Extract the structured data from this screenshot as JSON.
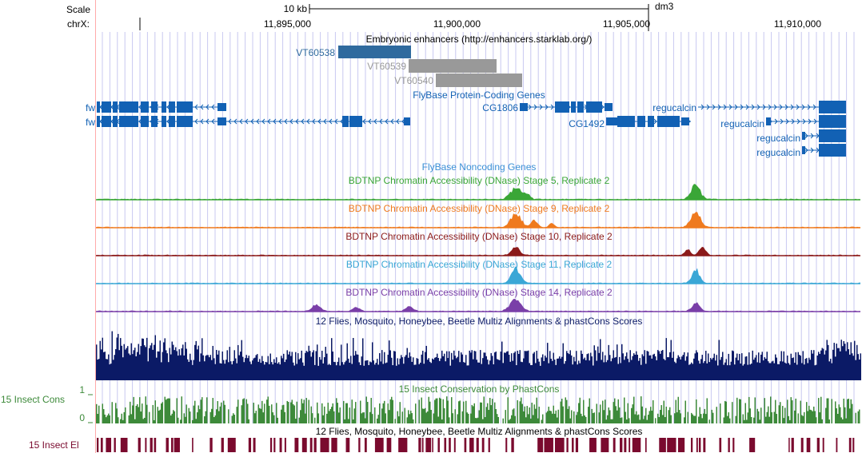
{
  "ruler": {
    "scale_label": "Scale",
    "chrom_label": "chrX:",
    "scale_text": "10 kb",
    "assembly": "dm3",
    "ticks": [
      "11,895,000",
      "11,900,000",
      "11,905,000",
      "11,910,000"
    ]
  },
  "tracks": {
    "enhancers": {
      "title": "Embryonic enhancers (http://enhancers.starklab.org/)",
      "items": [
        "VT60538",
        "VT60539",
        "VT60540"
      ]
    },
    "protein_coding": {
      "title": "FlyBase Protein-Coding Genes",
      "genes": [
        "fw",
        "fw",
        "CG1806",
        "CG1492",
        "regucalcin",
        "regucalcin",
        "regucalcin",
        "regucalcin"
      ]
    },
    "noncoding": {
      "title": "FlyBase Noncoding Genes"
    },
    "dnase": [
      {
        "title": "BDTNP Chromatin Accessibility (DNase) Stage 5, Replicate 2",
        "color": "#3aa637"
      },
      {
        "title": "BDTNP Chromatin Accessibility (DNase) Stage 9, Replicate 2",
        "color": "#ef7a1e"
      },
      {
        "title": "BDTNP Chromatin Accessibility (DNase) Stage 10, Replicate 2",
        "color": "#8b1a1a"
      },
      {
        "title": "BDTNP Chromatin Accessibility (DNase) Stage 11, Replicate 2",
        "color": "#3aa7d6"
      },
      {
        "title": "BDTNP Chromatin Accessibility (DNase) Stage 14, Replicate 2",
        "color": "#7a3fa8"
      }
    ],
    "multiz": {
      "title": "12 Flies, Mosquito, Honeybee, Beetle Multiz Alignments & phastCons Scores",
      "color": "#0b1a66"
    },
    "cons": {
      "title": "15 Insect Conservation by PhastCons",
      "side_label": "15 Insect Cons",
      "axis_max": "1",
      "axis_min": "0",
      "color": "#3d8a3a"
    },
    "elements": {
      "title": "12 Flies, Mosquito, Honeybee, Beetle Multiz Alignments & phastCons Scores",
      "side_label": "15 Insect El",
      "color": "#7a0a2e"
    }
  },
  "colors": {
    "gene": "#1261b4",
    "enhancer_selected": "#2f6a9e",
    "enhancer_other": "#999999",
    "grid": "#c8c8f0",
    "left_edge": "#ffaaaa"
  }
}
